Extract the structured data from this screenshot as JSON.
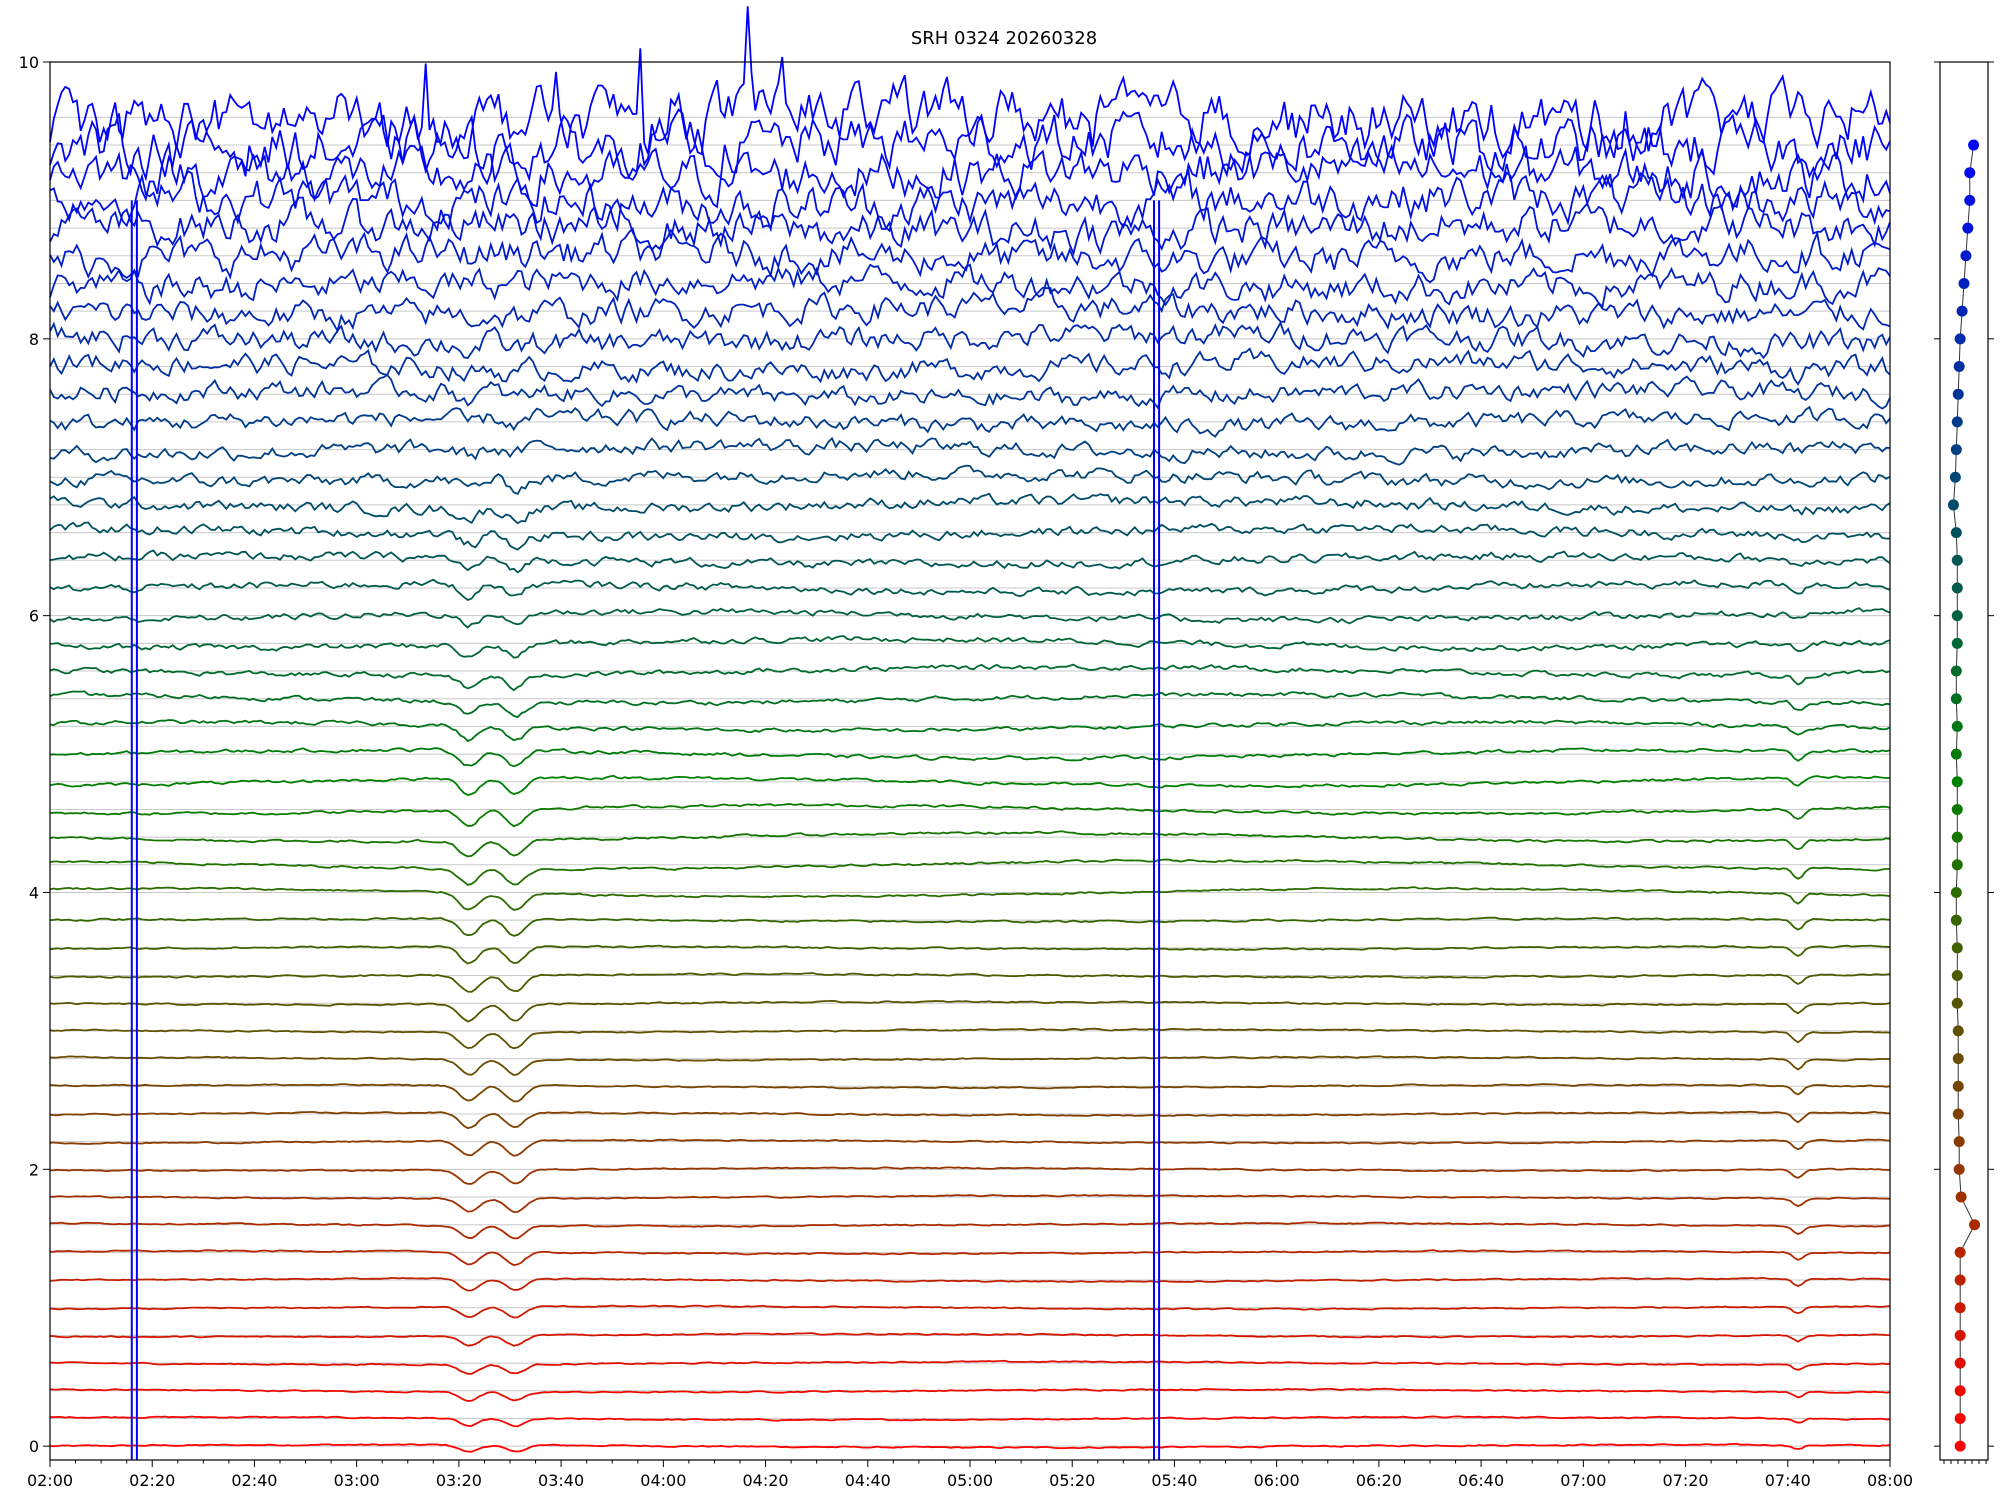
{
  "chart_data": {
    "type": "line",
    "title": "SRH 0324 20260328",
    "xlabel": "",
    "ylabel": "",
    "x_range": [
      "02:00",
      "08:00"
    ],
    "x_ticks": [
      "02:00",
      "02:20",
      "02:40",
      "03:00",
      "03:20",
      "03:40",
      "04:00",
      "04:20",
      "04:40",
      "05:00",
      "05:20",
      "05:40",
      "06:00",
      "06:20",
      "06:40",
      "07:00",
      "07:20",
      "07:40",
      "08:00"
    ],
    "ylim": [
      -0.1,
      10
    ],
    "y_ticks": [
      "0",
      "2",
      "4",
      "6",
      "8",
      "10"
    ],
    "grid": true,
    "n_series": 49,
    "series_offset_step": 0.2,
    "color_low": "#ff0000",
    "color_mid": "#008000",
    "color_high": "#0000ff",
    "saturation_spikes_x": [
      "02:16",
      "02:17",
      "05:36",
      "05:37"
    ],
    "common_dips_x": [
      "03:22",
      "03:31",
      "07:42"
    ],
    "side_panel": {
      "marker_values": [
        9.4,
        9.2,
        9.0,
        8.8,
        8.6,
        8.4,
        8.2,
        8.0,
        7.8,
        7.6,
        7.4,
        7.2,
        7.0,
        6.8,
        6.6,
        6.4,
        6.2,
        6.0,
        5.8,
        5.6,
        5.4,
        5.2,
        5.0,
        4.8,
        4.6,
        4.4,
        4.2,
        4.0,
        3.8,
        3.6,
        3.4,
        3.2,
        3.0,
        2.8,
        2.6,
        2.4,
        2.2,
        2.0,
        1.8,
        1.6,
        1.4,
        1.2,
        1.0,
        0.8,
        0.6,
        0.4,
        0.2,
        0.0
      ],
      "marker_x": [
        0.7,
        0.62,
        0.62,
        0.58,
        0.54,
        0.5,
        0.46,
        0.42,
        0.4,
        0.38,
        0.36,
        0.34,
        0.32,
        0.28,
        0.34,
        0.36,
        0.36,
        0.36,
        0.36,
        0.34,
        0.34,
        0.36,
        0.34,
        0.36,
        0.36,
        0.36,
        0.36,
        0.34,
        0.34,
        0.36,
        0.36,
        0.36,
        0.38,
        0.38,
        0.38,
        0.38,
        0.4,
        0.4,
        0.44,
        0.72,
        0.42,
        0.42,
        0.42,
        0.42,
        0.42,
        0.42,
        0.42,
        0.42
      ]
    }
  }
}
